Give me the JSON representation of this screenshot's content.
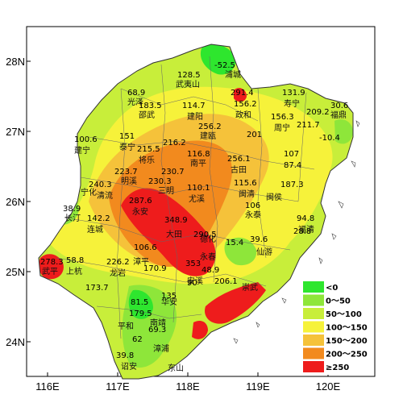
{
  "axes": {
    "x_ticks": [
      "116E",
      "117E",
      "118E",
      "119E",
      "120E"
    ],
    "y_ticks": [
      "28N",
      "27N",
      "26N",
      "25N",
      "24N"
    ]
  },
  "legend": {
    "items": [
      {
        "label": "<0",
        "color": "#2ee62e"
      },
      {
        "label": "0～50",
        "color": "#8ee63a"
      },
      {
        "label": "50～100",
        "color": "#c8ee3a"
      },
      {
        "label": "100～150",
        "color": "#f6f23a"
      },
      {
        "label": "150～200",
        "color": "#f5c23a"
      },
      {
        "label": "200～250",
        "color": "#f28a1e"
      },
      {
        "label": "≥250",
        "color": "#ee1c1c"
      }
    ]
  },
  "station_values": [
    "-52.5",
    "128.5",
    "68.9",
    "183.5",
    "114.7",
    "291.4",
    "156.2",
    "131.9",
    "209.2",
    "30.6",
    "100.6",
    "151",
    "216.2",
    "256.2",
    "201",
    "156.3",
    "211.7",
    "215.5",
    "116.8",
    "256.1",
    "107",
    "-10.4",
    "223.7",
    "230.7",
    "110.1",
    "115.6",
    "187.3",
    "87.4",
    "240.3",
    "230.3",
    "287.6",
    "348.9",
    "106",
    "94.8",
    "38.9",
    "142.2",
    "290.5",
    "28.8",
    "15.4",
    "39.6",
    "278.3",
    "58.8",
    "106.6",
    "226.2",
    "353",
    "48.9",
    "206.1",
    "170.9",
    "90",
    "173.7",
    "135",
    "81.5",
    "179.5",
    "69.3",
    "62",
    "39.8"
  ],
  "city_names": [
    "浦城",
    "武夷山",
    "光泽",
    "邵武",
    "建阳",
    "政和",
    "寿宁",
    "福鼎",
    "建瓯",
    "周宁",
    "建宁",
    "泰宁",
    "将乐",
    "南平",
    "古田",
    "闽清",
    "宁化",
    "清流",
    "明溪",
    "永安",
    "三明",
    "大田",
    "尤溪",
    "闽侯",
    "长汀",
    "连城",
    "永泰",
    "福清",
    "武平",
    "上杭",
    "漳平",
    "龙岩",
    "安溪",
    "永春",
    "德化",
    "仙游",
    "平和",
    "南靖",
    "华安",
    "漳浦",
    "东山",
    "诏安",
    "崇武"
  ]
}
